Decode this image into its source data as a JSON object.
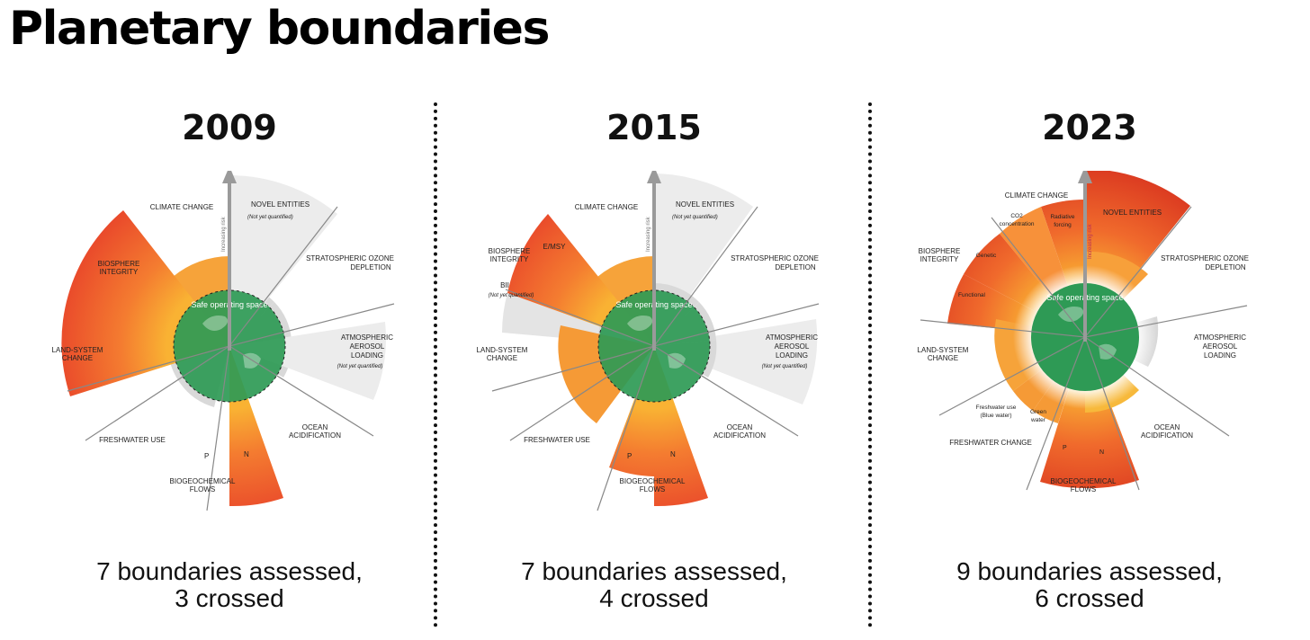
{
  "title": "Planetary boundaries",
  "colors": {
    "safe_green": "#2e9a55",
    "zone_orange": "#f6a33a",
    "risk_red": "#e2452a",
    "uncertain_gray": "#d4d4d4",
    "text": "#111111"
  },
  "panels": [
    {
      "year": "2009",
      "summary_line1": "7 boundaries assessed,",
      "summary_line2": "3 crossed",
      "arrow_label": "Increasing risk",
      "safe_label": "Safe operating space",
      "labels": {
        "climate": "CLIMATE CHANGE",
        "novel": "NOVEL ENTITIES",
        "novel_note": "(Not yet quantified)",
        "ozone1": "STRATOSPHERIC OZONE",
        "ozone2": "DEPLETION",
        "aerosol1": "ATMOSPHERIC",
        "aerosol2": "AEROSOL",
        "aerosol3": "LOADING",
        "aerosol_note": "(Not yet quantified)",
        "ocean1": "OCEAN",
        "ocean2": "ACIDIFICATION",
        "bgc1": "BIOGEOCHEMICAL",
        "bgc2": "FLOWS",
        "p": "P",
        "n": "N",
        "fresh": "FRESHWATER USE",
        "land1": "LAND-SYSTEM",
        "land2": "CHANGE",
        "bio1": "BIOSPHERE",
        "bio2": "INTEGRITY"
      }
    },
    {
      "year": "2015",
      "summary_line1": "7 boundaries assessed,",
      "summary_line2": "4 crossed",
      "arrow_label": "Increasing risk",
      "safe_label": "Safe operating space",
      "labels": {
        "climate": "CLIMATE CHANGE",
        "novel": "NOVEL ENTITIES",
        "novel_note": "(Not yet quantified)",
        "ozone1": "STRATOSPHERIC OZONE",
        "ozone2": "DEPLETION",
        "aerosol1": "ATMOSPHERIC",
        "aerosol2": "AEROSOL",
        "aerosol3": "LOADING",
        "aerosol_note": "(Not yet quantified)",
        "ocean1": "OCEAN",
        "ocean2": "ACIDIFICATION",
        "bgc1": "BIOGEOCHEMICAL",
        "bgc2": "FLOWS",
        "p": "P",
        "n": "N",
        "fresh": "FRESHWATER USE",
        "land1": "LAND-SYSTEM",
        "land2": "CHANGE",
        "bio1": "BIOSPHERE",
        "bio2": "INTEGRITY",
        "emsy": "E/MSY",
        "bii": "BII",
        "bii_note": "(Not yet quantified)"
      }
    },
    {
      "year": "2023",
      "summary_line1": "9 boundaries assessed,",
      "summary_line2": "6 crossed",
      "arrow_label": "Increasing risk",
      "safe_label": "Safe operating space",
      "labels": {
        "climate": "CLIMATE CHANGE",
        "co2_1": "CO2",
        "co2_2": "concentration",
        "rad1": "Radiative",
        "rad2": "forcing",
        "novel": "NOVEL ENTITIES",
        "ozone1": "STRATOSPHERIC OZONE",
        "ozone2": "DEPLETION",
        "aerosol1": "ATMOSPHERIC",
        "aerosol2": "AEROSOL",
        "aerosol3": "LOADING",
        "ocean1": "OCEAN",
        "ocean2": "ACIDIFICATION",
        "bgc1": "BIOGEOCHEMICAL",
        "bgc2": "FLOWS",
        "p": "P",
        "n": "N",
        "fresh": "FRESHWATER CHANGE",
        "blue1": "Freshwater use",
        "blue2": "(Blue water)",
        "green1": "Green",
        "green2": "water",
        "land1": "LAND-SYSTEM",
        "land2": "CHANGE",
        "bio1": "BIOSPHERE",
        "bio2": "INTEGRITY",
        "genetic": "Genetic",
        "functional": "Functional"
      }
    }
  ]
}
